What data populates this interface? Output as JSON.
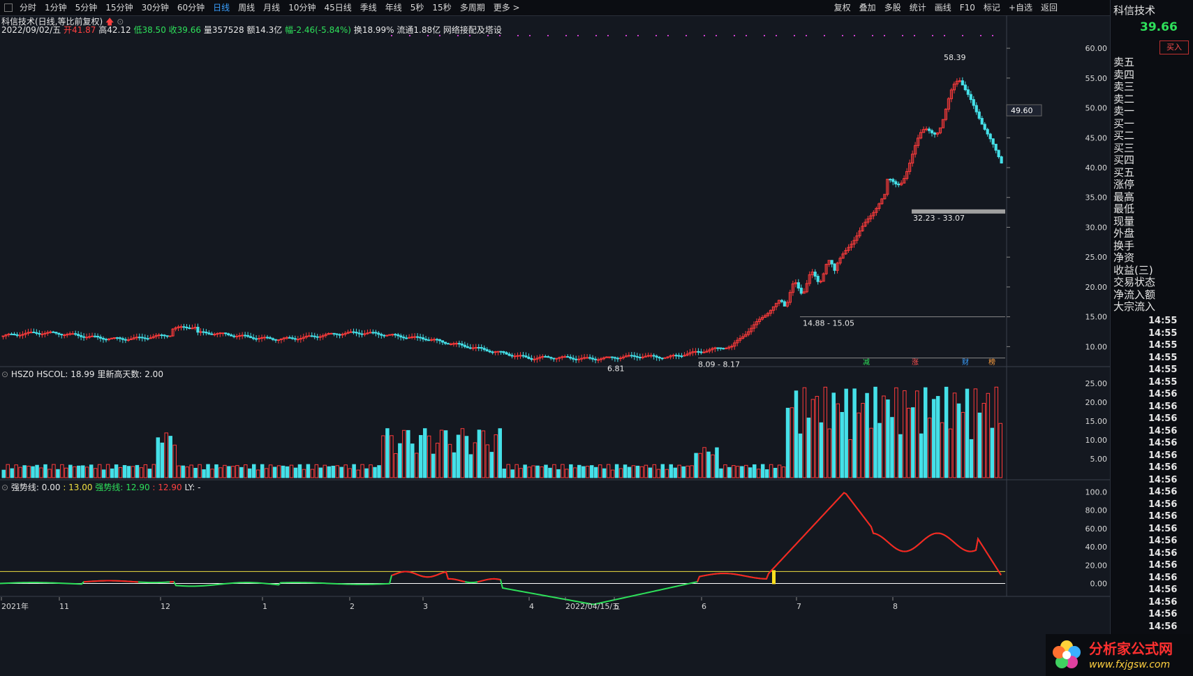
{
  "toolbar": {
    "left": [
      "分时",
      "1分钟",
      "5分钟",
      "15分钟",
      "30分钟",
      "60分钟",
      "日线",
      "周线",
      "月线",
      "10分钟",
      "45日线",
      "季线",
      "年线",
      "5秒",
      "15秒",
      "多周期",
      "更多 >"
    ],
    "active_index": 6,
    "right": [
      "复权",
      "叠加",
      "多股",
      "统计",
      "画线",
      "F10",
      "标记",
      "+自选",
      "返回"
    ]
  },
  "stock": {
    "title": "科信技术(日线,等比前复权)",
    "date": "2022/09/02/五",
    "open_label": "开",
    "open": "41.87",
    "high_label": "高",
    "high": "42.12",
    "low_label": "低",
    "low": "38.50",
    "close_label": "收",
    "close": "39.66",
    "vol_label": "量",
    "vol": "357528",
    "amt_label": "额",
    "amt": "14.3亿",
    "chg_label": "幅",
    "chg": "-2.46(-5.84%)",
    "extra": "换18.99% 流通1.88亿 网络接配及塔设"
  },
  "price_axis": [
    "60.00",
    "55.00",
    "50.00",
    "45.00",
    "40.00",
    "35.00",
    "30.00",
    "25.00",
    "20.00",
    "15.00",
    "10.00"
  ],
  "price_cursor": "49.60",
  "annotations": {
    "high_mark": "58.39",
    "low_mark": "6.81",
    "range1": "32.23 - 33.07",
    "range2": "14.88 - 15.05",
    "range3": "8.09 - 8.17",
    "tags": [
      "减",
      "涨",
      "财",
      "榜"
    ]
  },
  "vol_panel": {
    "title": "HSZ0 HSCOL: 18.99 里新高天数: 2.00",
    "axis": [
      "25.00",
      "20.00",
      "15.00",
      "10.00",
      "5.00"
    ]
  },
  "ind_panel": {
    "name1": "强势线",
    "v1": ": 0.00",
    "v2": ": 13.00",
    "name2": "强势线",
    "v3": ": 12.90",
    "v4": ": 12.90",
    "v5": "LY: -",
    "axis": [
      "100.0",
      "80.00",
      "60.00",
      "40.00",
      "20.00",
      "0.00"
    ]
  },
  "x_axis": [
    "2021年",
    "11",
    "12",
    "1",
    "2",
    "3",
    "4",
    "2022/04/15/五",
    "5",
    "6",
    "7",
    "8"
  ],
  "right_panel": {
    "name": "科信技术",
    "price": "39.66",
    "buy_btn": "买入",
    "rows": [
      "卖五",
      "卖四",
      "卖三",
      "卖二",
      "卖一",
      "买一",
      "买二",
      "买三",
      "买四",
      "买五",
      "涨停",
      "最高",
      "最低",
      "现量",
      "外盘",
      "换手",
      "净资",
      "收益(三)",
      "交易状态",
      "净流入额",
      "大宗流入"
    ],
    "times": [
      "14:55",
      "14:55",
      "14:55",
      "14:55",
      "14:55",
      "14:55",
      "14:56",
      "14:56",
      "14:56",
      "14:56",
      "14:56",
      "14:56",
      "14:56",
      "14:56",
      "14:56",
      "14:56",
      "14:56",
      "14:56",
      "14:56",
      "14:56",
      "14:56",
      "14:56",
      "14:56",
      "14:56",
      "14:56",
      "14:56"
    ]
  },
  "logo": {
    "title": "分析家公式网",
    "url": "www.fxjgsw.com"
  },
  "colors": {
    "up": "#ff3b3b",
    "down": "#45e0e8",
    "bg": "#141820",
    "line_green": "#2ee05a",
    "line_red": "#ff2020"
  }
}
